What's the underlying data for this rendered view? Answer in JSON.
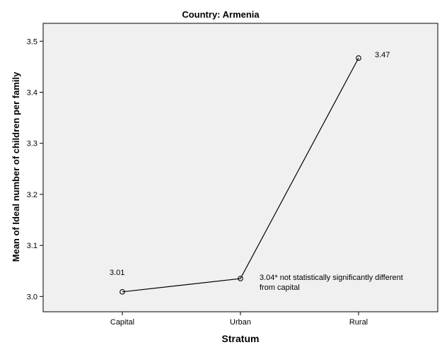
{
  "chart_data": {
    "type": "line",
    "title": "Country: Armenia",
    "xlabel": "Stratum",
    "ylabel": "Mean of Ideal number of children per family",
    "categories": [
      "Capital",
      "Urban",
      "Rural"
    ],
    "series": [
      {
        "values": [
          3.009,
          3.035,
          3.467
        ]
      }
    ],
    "ylim": [
      2.97,
      3.535
    ],
    "yticks": [
      3.0,
      3.1,
      3.2,
      3.3,
      3.4,
      3.5
    ],
    "ytick_labels": [
      "3.0",
      "3.1",
      "3.2",
      "3.3",
      "3.4",
      "3.5"
    ],
    "annotations": [
      {
        "category": "Capital",
        "lines": [
          "3.01"
        ]
      },
      {
        "category": "Urban",
        "lines": [
          "3.04* not statistically significantly different",
          "from capital"
        ]
      },
      {
        "category": "Rural",
        "lines": [
          "3.47"
        ]
      }
    ],
    "grid": false,
    "colors": {
      "plot_background": "#f0f0f0",
      "line": "#000000",
      "axis": "#000000"
    }
  }
}
